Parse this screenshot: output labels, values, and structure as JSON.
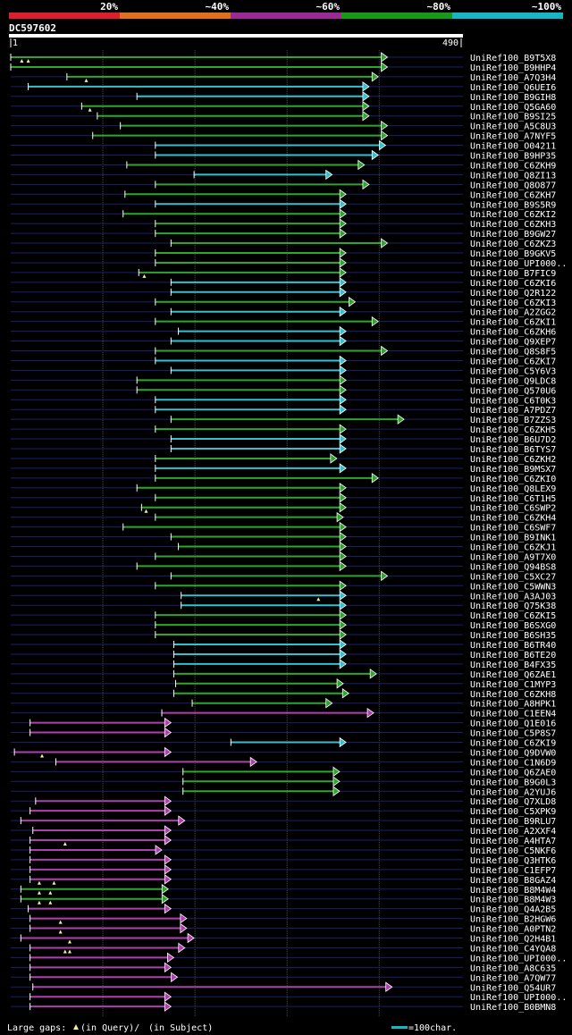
{
  "chart_data": {
    "type": "alignment-overview",
    "query_id": "DC597602",
    "query_start": 1,
    "query_end": 490,
    "identity_scale": [
      {
        "label": "20%",
        "color": "#dd1f2d"
      },
      {
        "label": "~40%",
        "color": "#e07020"
      },
      {
        "label": "~60%",
        "color": "#9a2a94"
      },
      {
        "label": "~80%",
        "color": "#189a18"
      },
      {
        "label": "~100%",
        "color": "#18b6c2"
      }
    ],
    "scale_start_label": "1",
    "scale_end_label": "490",
    "footer": {
      "gap_prefix": "Large gaps:",
      "query_gap": "(in Query)/",
      "subject_gap": "(in Subject)",
      "scale_label": "=100char."
    },
    "hits": [
      {
        "name": "UniRef100_B9T5X8",
        "s": 1,
        "e": 410,
        "c": "g",
        "arrow": true,
        "q": [
          13,
          20
        ]
      },
      {
        "name": "UniRef100_B9HHP4",
        "s": 1,
        "e": 410,
        "c": "g",
        "arrow": true
      },
      {
        "name": "UniRef100_A7Q3H4",
        "s": 62,
        "e": 400,
        "c": "g",
        "arrow": true,
        "q": [
          83
        ]
      },
      {
        "name": "UniRef100_Q6UEI6",
        "s": 20,
        "e": 390,
        "c": "c",
        "arrow": true
      },
      {
        "name": "UniRef100_B9GIH8",
        "s": 138,
        "e": 390,
        "c": "c",
        "arrow": true
      },
      {
        "name": "UniRef100_Q5GA60",
        "s": 78,
        "e": 390,
        "c": "g",
        "arrow": true,
        "q": [
          87
        ]
      },
      {
        "name": "UniRef100_B9SI25",
        "s": 95,
        "e": 390,
        "c": "g",
        "arrow": true
      },
      {
        "name": "UniRef100_A5C8U3",
        "s": 120,
        "e": 410,
        "c": "g",
        "arrow": true
      },
      {
        "name": "UniRef100_A7NYF5",
        "s": 90,
        "e": 410,
        "c": "g",
        "arrow": true
      },
      {
        "name": "UniRef100_O04211",
        "s": 158,
        "e": 408,
        "c": "c",
        "arrow": true
      },
      {
        "name": "UniRef100_B9HP35",
        "s": 158,
        "e": 400,
        "c": "c",
        "arrow": true
      },
      {
        "name": "UniRef100_C6ZKH9",
        "s": 127,
        "e": 385,
        "c": "g",
        "arrow": true
      },
      {
        "name": "UniRef100_Q8ZI13",
        "s": 200,
        "e": 350,
        "c": "c",
        "arrow": true
      },
      {
        "name": "UniRef100_Q8O877",
        "s": 158,
        "e": 390,
        "c": "g",
        "arrow": true
      },
      {
        "name": "UniRef100_C6ZKH7",
        "s": 125,
        "e": 365,
        "c": "g",
        "arrow": true
      },
      {
        "name": "UniRef100_B9S5R9",
        "s": 158,
        "e": 365,
        "c": "c",
        "arrow": true
      },
      {
        "name": "UniRef100_C6ZKI2",
        "s": 123,
        "e": 365,
        "c": "g",
        "arrow": true
      },
      {
        "name": "UniRef100_C6ZKH3",
        "s": 158,
        "e": 365,
        "c": "g",
        "arrow": true
      },
      {
        "name": "UniRef100_B9GW27",
        "s": 158,
        "e": 365,
        "c": "g",
        "arrow": true
      },
      {
        "name": "UniRef100_C6ZKZ3",
        "s": 175,
        "e": 410,
        "c": "g",
        "arrow": true
      },
      {
        "name": "UniRef100_B9GKV5",
        "s": 158,
        "e": 365,
        "c": "g",
        "arrow": true
      },
      {
        "name": "UniRef100_UPI000..",
        "s": 158,
        "e": 365,
        "c": "g",
        "arrow": true
      },
      {
        "name": "UniRef100_B7FIC9",
        "s": 140,
        "e": 365,
        "c": "g",
        "arrow": true,
        "q": [
          146
        ]
      },
      {
        "name": "UniRef100_C6ZKI6",
        "s": 175,
        "e": 365,
        "c": "c",
        "arrow": true
      },
      {
        "name": "UniRef100_Q2R122",
        "s": 175,
        "e": 365,
        "c": "c",
        "arrow": true
      },
      {
        "name": "UniRef100_C6ZKI3",
        "s": 158,
        "e": 375,
        "c": "g",
        "arrow": true
      },
      {
        "name": "UniRef100_A2ZGG2",
        "s": 175,
        "e": 365,
        "c": "c",
        "arrow": true
      },
      {
        "name": "UniRef100_C6ZKI1",
        "s": 158,
        "e": 400,
        "c": "g",
        "arrow": true
      },
      {
        "name": "UniRef100_C6ZKH6",
        "s": 183,
        "e": 365,
        "c": "c",
        "arrow": true
      },
      {
        "name": "UniRef100_Q9XEP7",
        "s": 175,
        "e": 365,
        "c": "c",
        "arrow": true
      },
      {
        "name": "UniRef100_Q8S8F5",
        "s": 158,
        "e": 410,
        "c": "g",
        "arrow": true
      },
      {
        "name": "UniRef100_C6ZKI7",
        "s": 158,
        "e": 365,
        "c": "c",
        "arrow": true
      },
      {
        "name": "UniRef100_C5Y6V3",
        "s": 175,
        "e": 365,
        "c": "c",
        "arrow": true
      },
      {
        "name": "UniRef100_Q9LDC8",
        "s": 138,
        "e": 365,
        "c": "g",
        "arrow": true
      },
      {
        "name": "UniRef100_Q570U6",
        "s": 138,
        "e": 365,
        "c": "g",
        "arrow": true
      },
      {
        "name": "UniRef100_C6T0K3",
        "s": 158,
        "e": 365,
        "c": "c",
        "arrow": true
      },
      {
        "name": "UniRef100_A7PDZ7",
        "s": 158,
        "e": 365,
        "c": "c",
        "arrow": true
      },
      {
        "name": "UniRef100_B7ZZS3",
        "s": 175,
        "e": 428,
        "c": "g",
        "arrow": true
      },
      {
        "name": "UniRef100_C6ZKH5",
        "s": 158,
        "e": 365,
        "c": "g",
        "arrow": true
      },
      {
        "name": "UniRef100_B6U7D2",
        "s": 175,
        "e": 365,
        "c": "c",
        "arrow": true
      },
      {
        "name": "UniRef100_B6TYS7",
        "s": 175,
        "e": 365,
        "c": "c",
        "arrow": true
      },
      {
        "name": "UniRef100_C6ZKH2",
        "s": 158,
        "e": 355,
        "c": "g",
        "arrow": true
      },
      {
        "name": "UniRef100_B9MSX7",
        "s": 158,
        "e": 365,
        "c": "c",
        "arrow": true
      },
      {
        "name": "UniRef100_C6ZKI0",
        "s": 158,
        "e": 400,
        "c": "g",
        "arrow": true
      },
      {
        "name": "UniRef100_Q8LEX9",
        "s": 138,
        "e": 365,
        "c": "g",
        "arrow": true
      },
      {
        "name": "UniRef100_C6T1H5",
        "s": 158,
        "e": 365,
        "c": "g",
        "arrow": true
      },
      {
        "name": "UniRef100_C6SWP2",
        "s": 143,
        "e": 365,
        "c": "g",
        "arrow": true,
        "q": [
          148
        ]
      },
      {
        "name": "UniRef100_C6ZKH4",
        "s": 158,
        "e": 362,
        "c": "g",
        "arrow": true
      },
      {
        "name": "UniRef100_C6SWF7",
        "s": 123,
        "e": 365,
        "c": "g",
        "arrow": true
      },
      {
        "name": "UniRef100_B9INK1",
        "s": 175,
        "e": 365,
        "c": "g",
        "arrow": true
      },
      {
        "name": "UniRef100_C6ZKJ1",
        "s": 183,
        "e": 365,
        "c": "g",
        "arrow": true
      },
      {
        "name": "UniRef100_A9T7X0",
        "s": 158,
        "e": 365,
        "c": "g",
        "arrow": true
      },
      {
        "name": "UniRef100_Q94BS8",
        "s": 138,
        "e": 365,
        "c": "g",
        "arrow": true
      },
      {
        "name": "UniRef100_C5XC27",
        "s": 175,
        "e": 410,
        "c": "g",
        "arrow": true
      },
      {
        "name": "UniRef100_C5WWN3",
        "s": 158,
        "e": 365,
        "c": "g",
        "arrow": true
      },
      {
        "name": "UniRef100_A3AJ03",
        "s": 186,
        "e": 365,
        "c": "c",
        "arrow": true,
        "q": [
          335
        ]
      },
      {
        "name": "UniRef100_Q75K38",
        "s": 186,
        "e": 365,
        "c": "c",
        "arrow": true
      },
      {
        "name": "UniRef100_C6ZKI5",
        "s": 158,
        "e": 365,
        "c": "g",
        "arrow": true
      },
      {
        "name": "UniRef100_B6SXG0",
        "s": 158,
        "e": 365,
        "c": "g",
        "arrow": true
      },
      {
        "name": "UniRef100_B6SH35",
        "s": 158,
        "e": 365,
        "c": "g",
        "arrow": true
      },
      {
        "name": "UniRef100_B6TR40",
        "s": 178,
        "e": 365,
        "c": "c",
        "arrow": true
      },
      {
        "name": "UniRef100_B6TE20",
        "s": 178,
        "e": 365,
        "c": "c",
        "arrow": true
      },
      {
        "name": "UniRef100_B4FX35",
        "s": 178,
        "e": 365,
        "c": "c",
        "arrow": true
      },
      {
        "name": "UniRef100_Q6ZAE1",
        "s": 178,
        "e": 398,
        "c": "g",
        "arrow": true
      },
      {
        "name": "UniRef100_C1MYP3",
        "s": 180,
        "e": 362,
        "c": "g",
        "arrow": true
      },
      {
        "name": "UniRef100_C6ZKH8",
        "s": 178,
        "e": 368,
        "c": "g",
        "arrow": true
      },
      {
        "name": "UniRef100_A8HPK1",
        "s": 198,
        "e": 350,
        "c": "g",
        "arrow": true
      },
      {
        "name": "UniRef100_C1EEN4",
        "s": 165,
        "e": 395,
        "c": "m",
        "arrow": true
      },
      {
        "name": "UniRef100_Q1E016",
        "s": 22,
        "e": 175,
        "c": "m",
        "arrow": true
      },
      {
        "name": "UniRef100_C5P8S7",
        "s": 22,
        "e": 175,
        "c": "m",
        "arrow": true
      },
      {
        "name": "UniRef100_C6ZKI9",
        "s": 240,
        "e": 365,
        "c": "c",
        "arrow": true
      },
      {
        "name": "UniRef100_Q9DVW0",
        "s": 5,
        "e": 175,
        "c": "m",
        "arrow": true,
        "q": [
          35
        ]
      },
      {
        "name": "UniRef100_C1N6D9",
        "s": 50,
        "e": 268,
        "c": "m",
        "arrow": true
      },
      {
        "name": "UniRef100_Q6ZAE0",
        "s": 188,
        "e": 358,
        "c": "g",
        "arrow": true
      },
      {
        "name": "UniRef100_B9G0L3",
        "s": 188,
        "e": 358,
        "c": "g",
        "arrow": true
      },
      {
        "name": "UniRef100_A2YUJ6",
        "s": 188,
        "e": 358,
        "c": "g",
        "arrow": true
      },
      {
        "name": "UniRef100_Q7XLD8",
        "s": 28,
        "e": 175,
        "c": "m",
        "arrow": true
      },
      {
        "name": "UniRef100_C5XPK9",
        "s": 22,
        "e": 175,
        "c": "m",
        "arrow": true
      },
      {
        "name": "UniRef100_B9RLU7",
        "s": 12,
        "e": 190,
        "c": "m",
        "arrow": true
      },
      {
        "name": "UniRef100_A2XXF4",
        "s": 25,
        "e": 175,
        "c": "m",
        "arrow": true
      },
      {
        "name": "UniRef100_A4HTA7",
        "s": 22,
        "e": 175,
        "c": "m",
        "arrow": true,
        "q": [
          60
        ]
      },
      {
        "name": "UniRef100_C5NKF6",
        "s": 22,
        "e": 165,
        "c": "m",
        "arrow": true
      },
      {
        "name": "UniRef100_Q3HTK6",
        "s": 22,
        "e": 175,
        "c": "m",
        "arrow": true
      },
      {
        "name": "UniRef100_C1EFP7",
        "s": 22,
        "e": 175,
        "c": "m",
        "arrow": true
      },
      {
        "name": "UniRef100_B8GAZ4",
        "s": 22,
        "e": 175,
        "c": "m",
        "arrow": true,
        "q": [
          32,
          48
        ]
      },
      {
        "name": "UniRef100_B8M4W4",
        "s": 12,
        "e": 172,
        "c": "g",
        "arrow": true,
        "q": [
          32,
          44
        ]
      },
      {
        "name": "UniRef100_B8M4W3",
        "s": 12,
        "e": 172,
        "c": "g",
        "arrow": true,
        "q": [
          32,
          44
        ]
      },
      {
        "name": "UniRef100_Q4A2B5",
        "s": 20,
        "e": 175,
        "c": "m",
        "arrow": true
      },
      {
        "name": "UniRef100_B2HGW6",
        "s": 22,
        "e": 192,
        "c": "m",
        "arrow": true,
        "q": [
          55
        ]
      },
      {
        "name": "UniRef100_A0PTN2",
        "s": 22,
        "e": 192,
        "c": "m",
        "arrow": true,
        "q": [
          55
        ]
      },
      {
        "name": "UniRef100_Q2H4B1",
        "s": 12,
        "e": 200,
        "c": "m",
        "arrow": true,
        "q": [
          65
        ]
      },
      {
        "name": "UniRef100_C4YQA8",
        "s": 22,
        "e": 190,
        "c": "m",
        "arrow": true,
        "q": [
          60,
          65
        ]
      },
      {
        "name": "UniRef100_UPI000..",
        "s": 22,
        "e": 178,
        "c": "m",
        "arrow": true
      },
      {
        "name": "UniRef100_A8C635",
        "s": 22,
        "e": 175,
        "c": "m",
        "arrow": true
      },
      {
        "name": "UniRef100_A7QW77",
        "s": 22,
        "e": 182,
        "c": "m",
        "arrow": true
      },
      {
        "name": "UniRef100_Q54UR7",
        "s": 25,
        "e": 415,
        "c": "m",
        "arrow": true
      },
      {
        "name": "UniRef100_UPI000..",
        "s": 22,
        "e": 175,
        "c": "m",
        "arrow": true
      },
      {
        "name": "UniRef100_B0BMN8",
        "s": 22,
        "e": 175,
        "c": "m",
        "arrow": true
      }
    ]
  }
}
